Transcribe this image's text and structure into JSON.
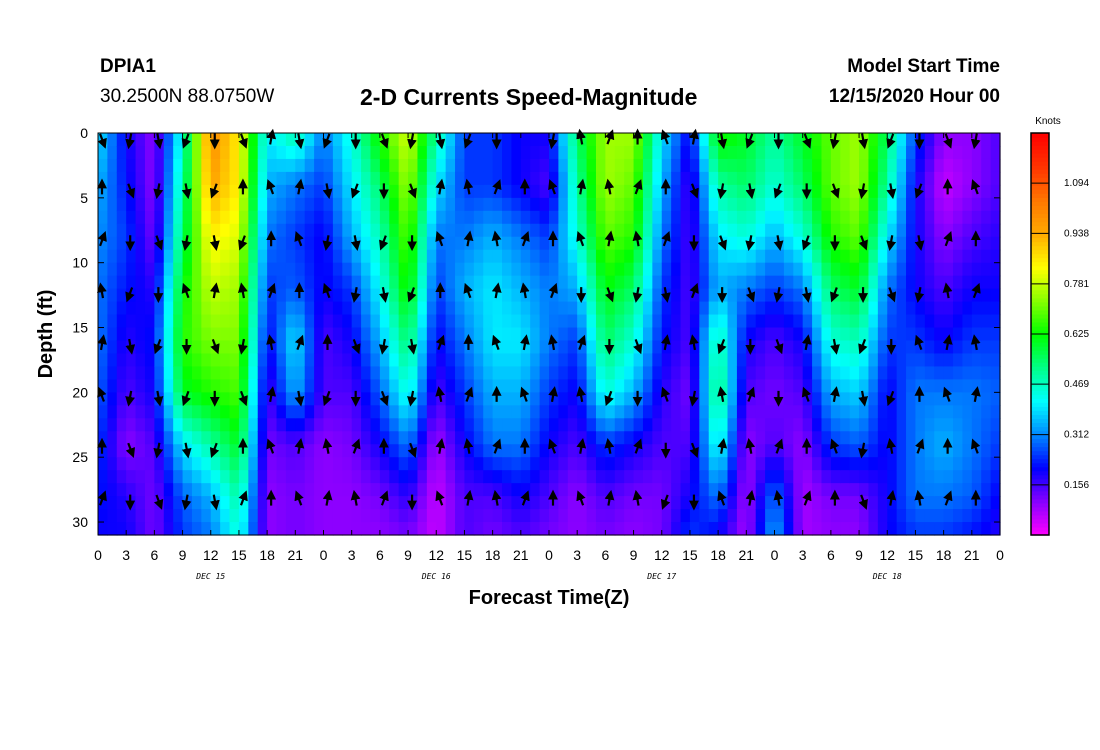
{
  "header": {
    "station": "DPIA1",
    "coordinates": "30.2500N 88.0750W",
    "title": "2-D Currents Speed-Magnitude",
    "model_start_label": "Model Start Time",
    "model_start_value": "12/15/2020 Hour 00"
  },
  "colors": {
    "colormap": [
      "#ff00ff",
      "#8800ff",
      "#0000ff",
      "#0088ff",
      "#00ffff",
      "#00ff88",
      "#00ff00",
      "#88ff00",
      "#ffff00",
      "#ffaa00",
      "#ff7700",
      "#ff3300",
      "#ff0000"
    ],
    "arrow": "#000000"
  },
  "chart_data": {
    "type": "heatmap",
    "title": "2-D Currents Speed-Magnitude",
    "xlabel": "Forecast Time(Z)",
    "ylabel": "Depth (ft)",
    "x_unit": "hours since 12/15/2020 00Z",
    "xlim": [
      0,
      96
    ],
    "ylim": [
      31,
      0
    ],
    "x_ticks": [
      0,
      3,
      6,
      9,
      12,
      15,
      18,
      21,
      24,
      27,
      30,
      33,
      36,
      39,
      42,
      45,
      48,
      51,
      54,
      57,
      60,
      63,
      66,
      69,
      72,
      75,
      78,
      81,
      84,
      87,
      90,
      93,
      96
    ],
    "x_tick_labels": [
      "0",
      "3",
      "6",
      "9",
      "12",
      "15",
      "18",
      "21",
      "0",
      "3",
      "6",
      "9",
      "12",
      "15",
      "18",
      "21",
      "0",
      "3",
      "6",
      "9",
      "12",
      "15",
      "18",
      "21",
      "0",
      "3",
      "6",
      "9",
      "12",
      "15",
      "18",
      "21",
      "0"
    ],
    "day_labels": [
      {
        "x": 12,
        "label": "DEC 15"
      },
      {
        "x": 36,
        "label": "DEC 16"
      },
      {
        "x": 60,
        "label": "DEC 17"
      },
      {
        "x": 84,
        "label": "DEC 18"
      }
    ],
    "y_ticks": [
      0,
      5,
      10,
      15,
      20,
      25,
      30
    ],
    "colorbar": {
      "label": "Knots",
      "range": [
        0,
        1.25
      ],
      "tick_values": [
        0.156,
        0.312,
        0.469,
        0.625,
        0.781,
        0.938,
        1.094
      ],
      "tick_labels": [
        "0.156",
        "0.312",
        "0.469",
        "0.625",
        "0.781",
        "0.938",
        "1.094"
      ]
    },
    "grid_hours": [
      0,
      3,
      6,
      9,
      12,
      15,
      18,
      21,
      24,
      27,
      30,
      33,
      36,
      39,
      42,
      45,
      48,
      51,
      54,
      57,
      60,
      63,
      66,
      69,
      72,
      75,
      78,
      81,
      84,
      87,
      90,
      93,
      96
    ],
    "grid_depths": [
      0,
      4,
      8,
      12,
      16,
      20,
      24,
      28,
      31
    ],
    "speed_knots": [
      [
        0.4,
        0.35,
        0.32,
        0.3,
        0.3,
        0.28,
        0.25,
        0.22,
        0.2
      ],
      [
        0.2,
        0.22,
        0.25,
        0.22,
        0.18,
        0.15,
        0.1,
        0.18,
        0.2
      ],
      [
        0.1,
        0.1,
        0.12,
        0.18,
        0.22,
        0.2,
        0.15,
        0.12,
        0.12
      ],
      [
        0.45,
        0.5,
        0.55,
        0.62,
        0.65,
        0.6,
        0.4,
        0.28,
        0.25
      ],
      [
        1.0,
        0.95,
        0.85,
        0.78,
        0.72,
        0.65,
        0.5,
        0.35,
        0.3
      ],
      [
        0.85,
        0.85,
        0.8,
        0.75,
        0.72,
        0.68,
        0.6,
        0.5,
        0.45
      ],
      [
        0.4,
        0.35,
        0.3,
        0.25,
        0.2,
        0.15,
        0.12,
        0.1,
        0.1
      ],
      [
        0.5,
        0.3,
        0.25,
        0.28,
        0.4,
        0.35,
        0.15,
        0.12,
        0.12
      ],
      [
        0.3,
        0.25,
        0.2,
        0.2,
        0.15,
        0.15,
        0.1,
        0.1,
        0.1
      ],
      [
        0.45,
        0.4,
        0.35,
        0.25,
        0.2,
        0.15,
        0.12,
        0.1,
        0.1
      ],
      [
        0.65,
        0.55,
        0.48,
        0.42,
        0.35,
        0.28,
        0.2,
        0.12,
        0.1
      ],
      [
        0.8,
        0.75,
        0.7,
        0.65,
        0.55,
        0.45,
        0.3,
        0.18,
        0.12
      ],
      [
        0.5,
        0.4,
        0.3,
        0.25,
        0.2,
        0.15,
        0.08,
        0.05,
        0.05
      ],
      [
        0.25,
        0.25,
        0.3,
        0.35,
        0.3,
        0.25,
        0.2,
        0.15,
        0.15
      ],
      [
        0.25,
        0.25,
        0.35,
        0.4,
        0.4,
        0.35,
        0.3,
        0.15,
        0.12
      ],
      [
        0.2,
        0.2,
        0.3,
        0.35,
        0.4,
        0.35,
        0.3,
        0.2,
        0.15
      ],
      [
        0.2,
        0.15,
        0.25,
        0.3,
        0.3,
        0.25,
        0.2,
        0.15,
        0.12
      ],
      [
        0.55,
        0.5,
        0.45,
        0.35,
        0.25,
        0.2,
        0.15,
        0.1,
        0.1
      ],
      [
        0.75,
        0.75,
        0.7,
        0.62,
        0.55,
        0.45,
        0.25,
        0.15,
        0.12
      ],
      [
        0.75,
        0.7,
        0.65,
        0.55,
        0.45,
        0.35,
        0.2,
        0.12,
        0.1
      ],
      [
        0.4,
        0.35,
        0.3,
        0.25,
        0.22,
        0.18,
        0.15,
        0.12,
        0.12
      ],
      [
        0.2,
        0.15,
        0.15,
        0.15,
        0.15,
        0.12,
        0.15,
        0.2,
        0.25
      ],
      [
        0.65,
        0.5,
        0.4,
        0.35,
        0.5,
        0.55,
        0.45,
        0.3,
        0.2
      ],
      [
        0.6,
        0.55,
        0.45,
        0.3,
        0.2,
        0.15,
        0.1,
        0.08,
        0.08
      ],
      [
        0.5,
        0.45,
        0.35,
        0.25,
        0.15,
        0.12,
        0.15,
        0.3,
        0.35
      ],
      [
        0.6,
        0.55,
        0.45,
        0.3,
        0.2,
        0.15,
        0.1,
        0.08,
        0.08
      ],
      [
        0.7,
        0.7,
        0.65,
        0.55,
        0.45,
        0.35,
        0.25,
        0.12,
        0.1
      ],
      [
        0.75,
        0.75,
        0.7,
        0.6,
        0.48,
        0.38,
        0.28,
        0.12,
        0.1
      ],
      [
        0.55,
        0.5,
        0.4,
        0.3,
        0.25,
        0.2,
        0.2,
        0.2,
        0.2
      ],
      [
        0.25,
        0.2,
        0.2,
        0.2,
        0.25,
        0.3,
        0.3,
        0.3,
        0.25
      ],
      [
        0.1,
        0.05,
        0.1,
        0.15,
        0.2,
        0.3,
        0.35,
        0.3,
        0.25
      ],
      [
        0.1,
        0.1,
        0.15,
        0.2,
        0.25,
        0.3,
        0.3,
        0.28,
        0.22
      ],
      [
        0.15,
        0.15,
        0.18,
        0.2,
        0.25,
        0.28,
        0.25,
        0.2,
        0.18
      ]
    ],
    "vector_hours": [
      0,
      3,
      6,
      9,
      12,
      15,
      18,
      21,
      24,
      27,
      30,
      33,
      36,
      39,
      42,
      45,
      48,
      51,
      54,
      57,
      60,
      63,
      66,
      69,
      72,
      75,
      78,
      81,
      84,
      87,
      90,
      93
    ],
    "vector_depths": [
      0,
      4,
      8,
      12,
      16,
      20,
      24,
      28
    ],
    "vector_rows": [
      "SSSSSSNSSSSSSSS.SNNNNNSSSSSSSSSS",
      "NSSSSNNNSSSSNNNNNNNNNSSSSSSSSSNN",
      "NSSSSSNNSSSSNNNNNNNNNSSSSSSSSSNN",
      "NSSNNNNNNSSSNNNNNSSSSNSSSSSSSSNN",
      "NSSSSSNNNSSSNNNNNNSSNNSSSNSSSNNN",
      "NSSSSSNSSSSSNNNNNNSSNSNNSNNSSNNN",
      "NSSSSNNNNNNSNNNNNNNNSSNNNNNSNNNN",
      "NSSSSNNNNNNSNNNNNNNNSSNNNNNSNNNN"
    ]
  }
}
